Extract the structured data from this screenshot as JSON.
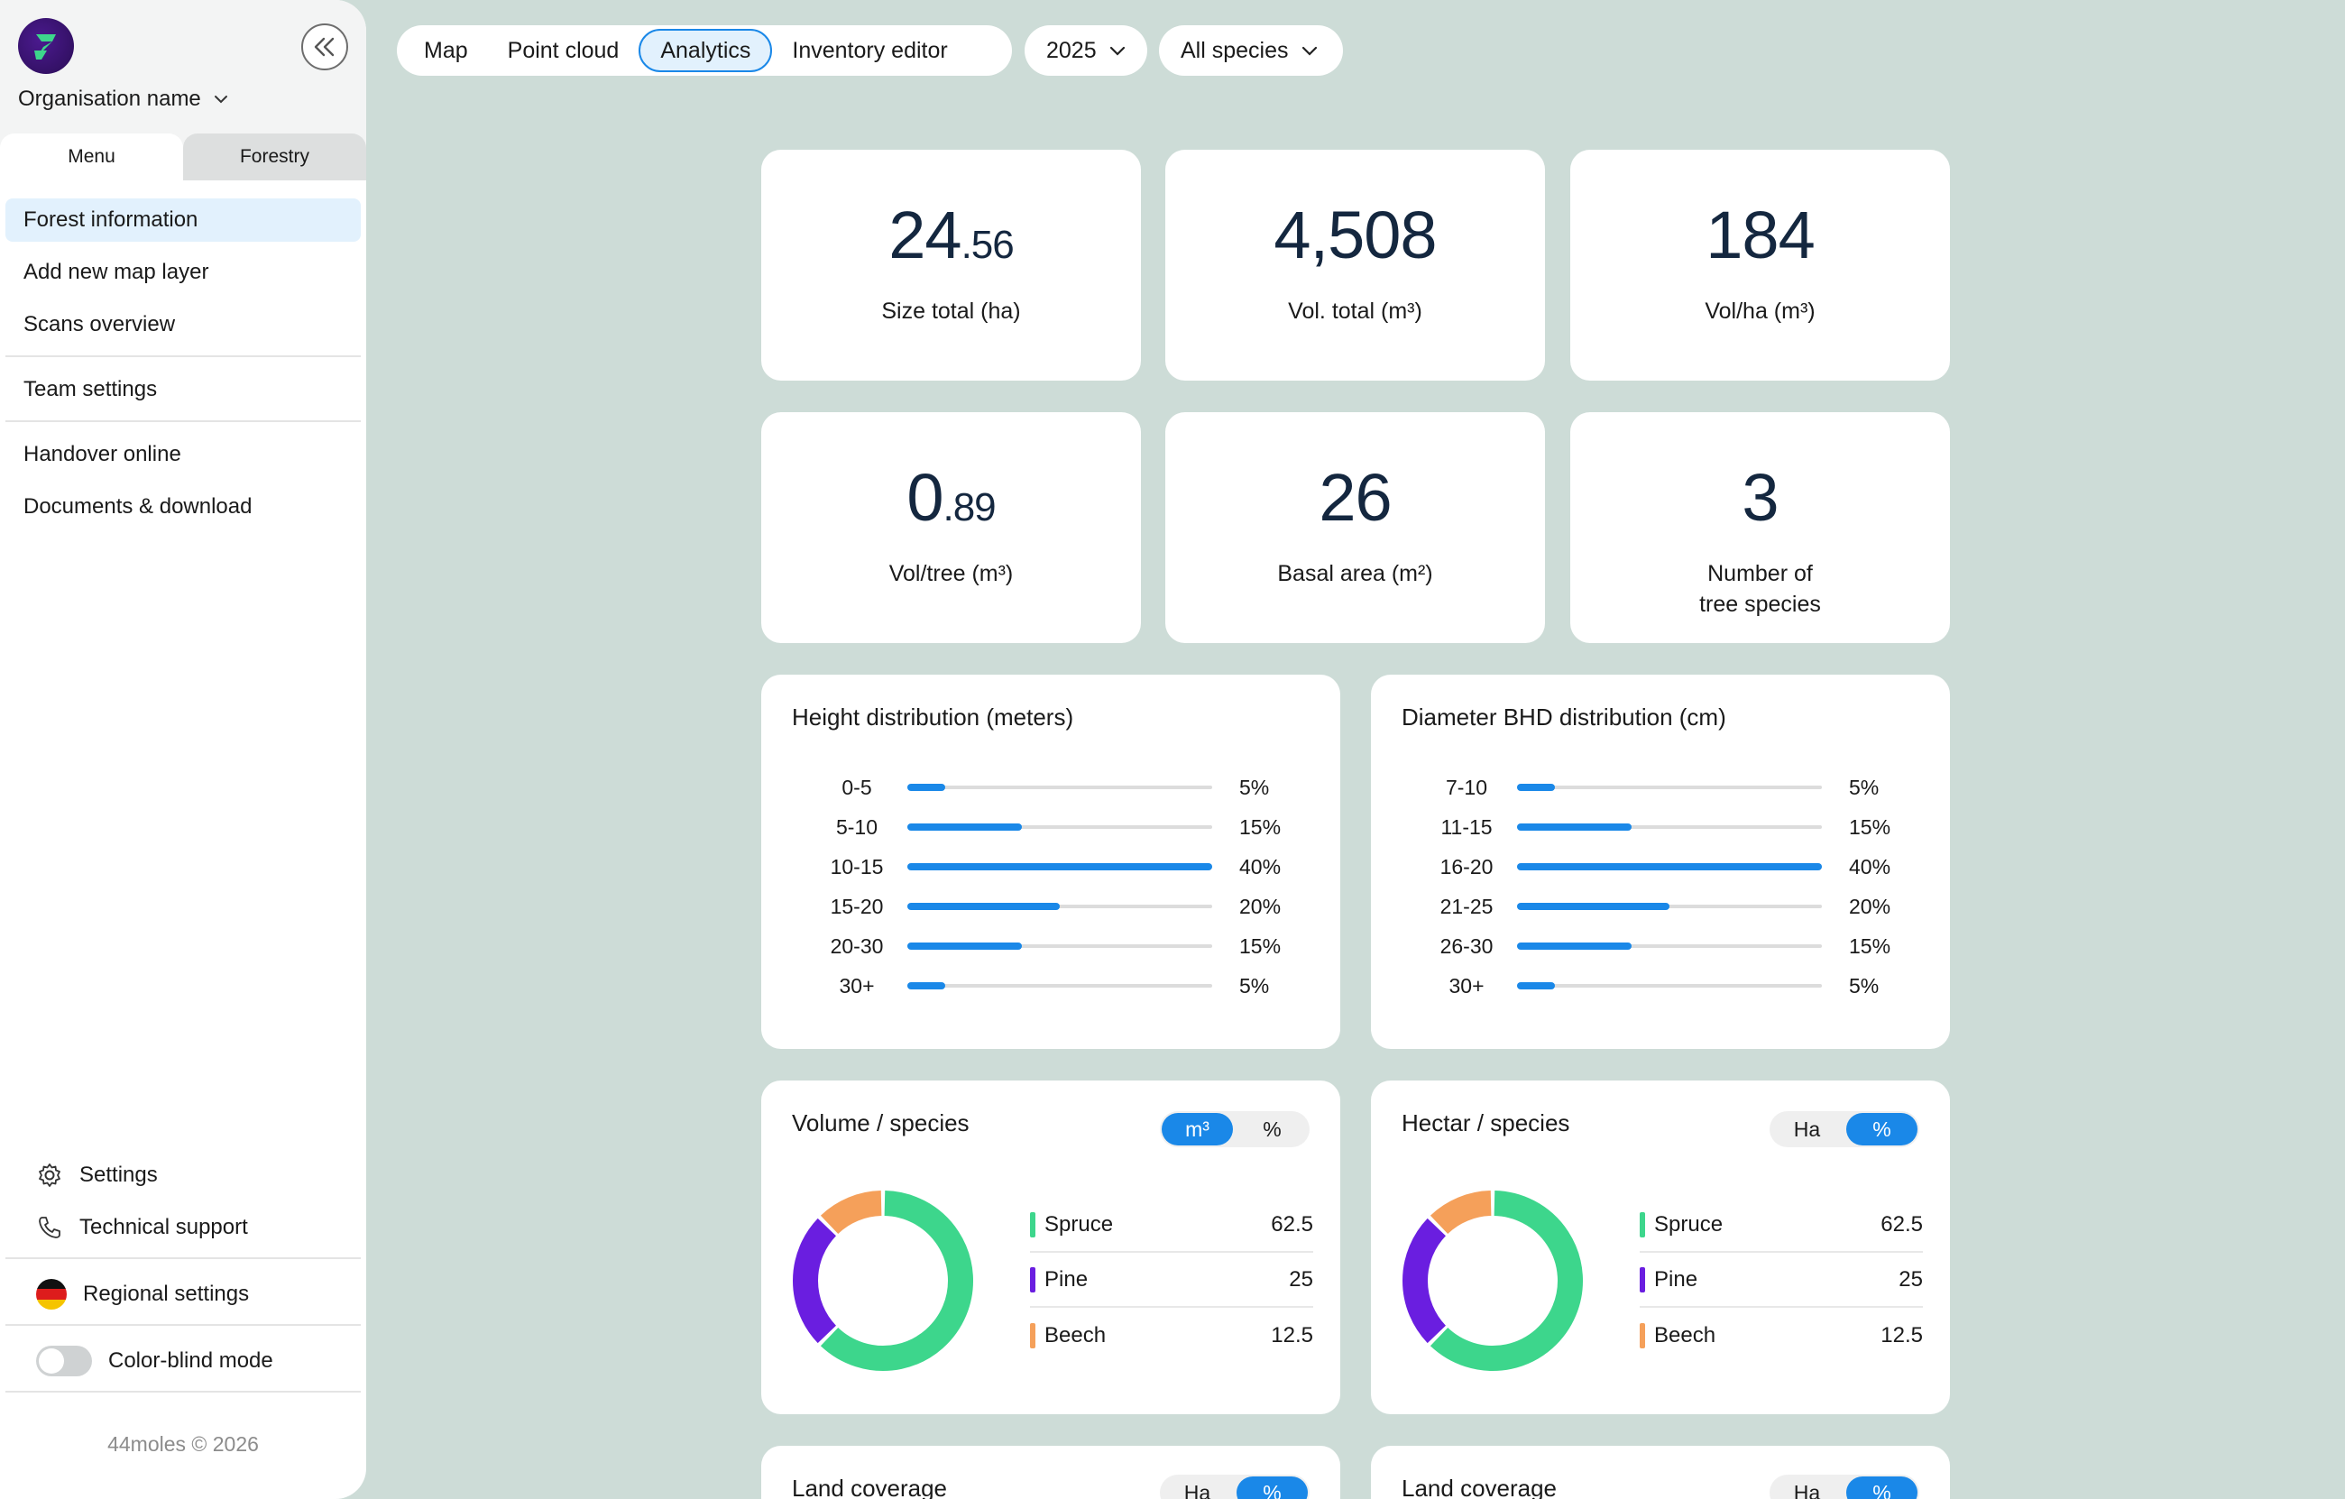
{
  "org": {
    "name": "Organisation name"
  },
  "sidebar": {
    "tabs": [
      {
        "label": "Menu"
      },
      {
        "label": "Forestry"
      }
    ],
    "groups": [
      [
        {
          "label": "Forest information"
        },
        {
          "label": "Add new map layer"
        },
        {
          "label": "Scans overview"
        }
      ],
      [
        {
          "label": "Team settings"
        }
      ],
      [
        {
          "label": "Handover online"
        },
        {
          "label": "Documents & download"
        }
      ]
    ],
    "settings": "Settings",
    "support": "Technical support",
    "regional": "Regional settings",
    "colorblind": "Color-blind mode",
    "copyright": "44moles © 2026"
  },
  "topbar": {
    "tabs": [
      {
        "label": "Map"
      },
      {
        "label": "Point cloud"
      },
      {
        "label": "Analytics"
      },
      {
        "label": "Inventory editor"
      }
    ],
    "year": "2025",
    "species": "All species"
  },
  "kpis": [
    {
      "int": "24",
      "dec": ".56",
      "label": "Size total (ha)"
    },
    {
      "int": "4,508",
      "dec": "",
      "label": "Vol. total (m³)"
    },
    {
      "int": "184",
      "dec": "",
      "label": "Vol/ha (m³)"
    },
    {
      "int": "0",
      "dec": ".89",
      "label": "Vol/tree (m³)"
    },
    {
      "int": "26",
      "dec": "",
      "label": "Basal area (m²)"
    },
    {
      "int": "3",
      "dec": "",
      "label": "Number of\ntree species"
    }
  ],
  "height_dist": {
    "title": "Height distribution (meters)",
    "rows": [
      {
        "label": "0-5",
        "pct": "5%",
        "value": 5
      },
      {
        "label": "5-10",
        "pct": "15%",
        "value": 15
      },
      {
        "label": "10-15",
        "pct": "40%",
        "value": 40
      },
      {
        "label": "15-20",
        "pct": "20%",
        "value": 20
      },
      {
        "label": "20-30",
        "pct": "15%",
        "value": 15
      },
      {
        "label": "30+",
        "pct": "5%",
        "value": 5
      }
    ]
  },
  "diameter_dist": {
    "title": "Diameter BHD distribution (cm)",
    "rows": [
      {
        "label": "7-10",
        "pct": "5%",
        "value": 5
      },
      {
        "label": "11-15",
        "pct": "15%",
        "value": 15
      },
      {
        "label": "16-20",
        "pct": "40%",
        "value": 40
      },
      {
        "label": "21-25",
        "pct": "20%",
        "value": 20
      },
      {
        "label": "26-30",
        "pct": "15%",
        "value": 15
      },
      {
        "label": "30+",
        "pct": "5%",
        "value": 5
      }
    ]
  },
  "volume_species": {
    "title": "Volume / species",
    "toggle": [
      {
        "label": "m³",
        "active": true
      },
      {
        "label": "%",
        "active": false
      }
    ],
    "items": [
      {
        "name": "Spruce",
        "value": "62.5",
        "num": 62.5,
        "color": "#3dd68c"
      },
      {
        "name": "Pine",
        "value": "25",
        "num": 25,
        "color": "#6a1ee0"
      },
      {
        "name": "Beech",
        "value": "12.5",
        "num": 12.5,
        "color": "#f5a05a"
      }
    ]
  },
  "hectar_species": {
    "title": "Hectar / species",
    "toggle": [
      {
        "label": "Ha",
        "active": false
      },
      {
        "label": "%",
        "active": true
      }
    ],
    "items": [
      {
        "name": "Spruce",
        "value": "62.5",
        "num": 62.5,
        "color": "#3dd68c"
      },
      {
        "name": "Pine",
        "value": "25",
        "num": 25,
        "color": "#6a1ee0"
      },
      {
        "name": "Beech",
        "value": "12.5",
        "num": 12.5,
        "color": "#f5a05a"
      }
    ]
  },
  "land_coverage": [
    {
      "title": "Land coverage",
      "toggle": [
        {
          "label": "Ha",
          "active": false
        },
        {
          "label": "%",
          "active": true
        }
      ]
    },
    {
      "title": "Land coverage",
      "toggle": [
        {
          "label": "Ha",
          "active": false
        },
        {
          "label": "%",
          "active": true
        }
      ]
    }
  ],
  "chart_data": [
    {
      "type": "bar",
      "title": "Height distribution (meters)",
      "categories": [
        "0-5",
        "5-10",
        "10-15",
        "15-20",
        "20-30",
        "30+"
      ],
      "values": [
        5,
        15,
        40,
        20,
        15,
        5
      ],
      "ylim": [
        0,
        40
      ]
    },
    {
      "type": "bar",
      "title": "Diameter BHD distribution (cm)",
      "categories": [
        "7-10",
        "11-15",
        "16-20",
        "21-25",
        "26-30",
        "30+"
      ],
      "values": [
        5,
        15,
        40,
        20,
        15,
        5
      ],
      "ylim": [
        0,
        40
      ]
    },
    {
      "type": "pie",
      "title": "Volume / species",
      "categories": [
        "Spruce",
        "Pine",
        "Beech"
      ],
      "values": [
        62.5,
        25,
        12.5
      ]
    },
    {
      "type": "pie",
      "title": "Hectar / species",
      "categories": [
        "Spruce",
        "Pine",
        "Beech"
      ],
      "values": [
        62.5,
        25,
        12.5
      ]
    }
  ]
}
